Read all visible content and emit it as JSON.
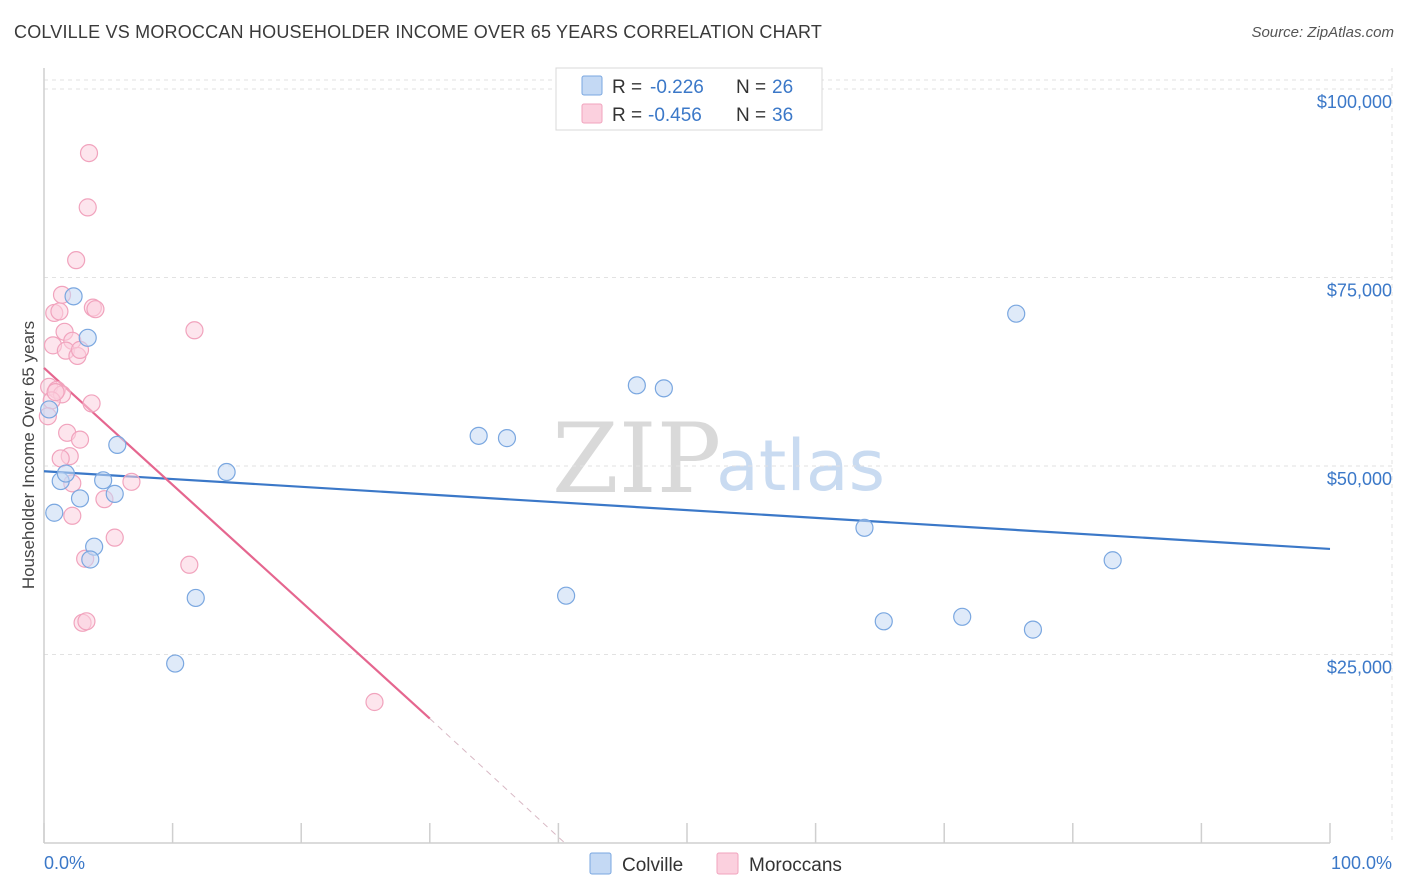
{
  "header": {
    "title": "COLVILLE VS MOROCCAN HOUSEHOLDER INCOME OVER 65 YEARS CORRELATION CHART",
    "source": "Source: ZipAtlas.com"
  },
  "watermark": {
    "zip": "ZIP",
    "atlas": "atlas"
  },
  "legend": {
    "r_label": "R =",
    "n_label": "N =",
    "items": [
      {
        "name": "Colville",
        "r": "-0.226",
        "n": "26"
      },
      {
        "name": "Moroccans",
        "r": "-0.456",
        "n": "36"
      }
    ]
  },
  "chart_data": {
    "type": "scatter",
    "title": "COLVILLE VS MOROCCAN HOUSEHOLDER INCOME OVER 65 YEARS CORRELATION CHART",
    "xlabel": "",
    "ylabel": "Householder Income Over 65 years",
    "xlim": [
      0,
      100
    ],
    "ylim": [
      0,
      105000
    ],
    "x_tick_labels": [
      "0.0%",
      "100.0%"
    ],
    "y_ticks": [
      25000,
      50000,
      75000,
      100000
    ],
    "y_tick_labels": [
      "$25,000",
      "$50,000",
      "$75,000",
      "$100,000"
    ],
    "colors": {
      "colville": "#7aa7e0",
      "moroccans": "#f1a3bd",
      "colville_line": "#3b78c8",
      "moroccans_line": "#e5668f"
    },
    "series": [
      {
        "name": "Colville",
        "points": [
          [
            0.4,
            57500
          ],
          [
            0.8,
            43800
          ],
          [
            1.3,
            48000
          ],
          [
            1.7,
            49000
          ],
          [
            2.3,
            72500
          ],
          [
            2.8,
            45700
          ],
          [
            3.4,
            67000
          ],
          [
            3.9,
            39300
          ],
          [
            4.6,
            48100
          ],
          [
            5.5,
            46300
          ],
          [
            5.7,
            52800
          ],
          [
            3.6,
            37600
          ],
          [
            10.2,
            23800
          ],
          [
            11.8,
            32500
          ],
          [
            14.2,
            49200
          ],
          [
            33.8,
            54000
          ],
          [
            36.0,
            53700
          ],
          [
            40.6,
            32800
          ],
          [
            46.1,
            60700
          ],
          [
            48.2,
            60300
          ],
          [
            63.8,
            41800
          ],
          [
            65.3,
            29400
          ],
          [
            71.4,
            30000
          ],
          [
            75.6,
            70200
          ],
          [
            76.9,
            28300
          ],
          [
            83.1,
            37500
          ]
        ]
      },
      {
        "name": "Moroccans",
        "points": [
          [
            3.5,
            91500
          ],
          [
            3.4,
            84300
          ],
          [
            2.5,
            77300
          ],
          [
            1.4,
            72700
          ],
          [
            3.8,
            71000
          ],
          [
            0.8,
            70300
          ],
          [
            1.2,
            70500
          ],
          [
            4.0,
            70800
          ],
          [
            11.7,
            68000
          ],
          [
            1.6,
            67800
          ],
          [
            0.7,
            66000
          ],
          [
            2.2,
            66600
          ],
          [
            1.7,
            65300
          ],
          [
            2.6,
            64600
          ],
          [
            2.8,
            65400
          ],
          [
            0.4,
            60500
          ],
          [
            1.0,
            60100
          ],
          [
            1.4,
            59500
          ],
          [
            0.6,
            58700
          ],
          [
            3.7,
            58300
          ],
          [
            0.3,
            56600
          ],
          [
            1.8,
            54400
          ],
          [
            2.8,
            53500
          ],
          [
            2.0,
            51300
          ],
          [
            1.3,
            51000
          ],
          [
            2.2,
            47700
          ],
          [
            6.8,
            47900
          ],
          [
            4.7,
            45600
          ],
          [
            2.2,
            43400
          ],
          [
            5.5,
            40500
          ],
          [
            3.2,
            37700
          ],
          [
            11.3,
            36900
          ],
          [
            3.0,
            29200
          ],
          [
            3.3,
            29400
          ],
          [
            25.7,
            18700
          ],
          [
            0.9,
            59800
          ]
        ]
      }
    ],
    "trend_lines": [
      {
        "name": "Colville",
        "x": [
          0,
          100
        ],
        "y": [
          49300,
          39000
        ],
        "dashed_extension": false
      },
      {
        "name": "Moroccans",
        "x": [
          0,
          30
        ],
        "y": [
          63000,
          16500
        ],
        "dashed_to": [
          40.5,
          0
        ]
      }
    ]
  },
  "bottom_legend": [
    "Colville",
    "Moroccans"
  ]
}
